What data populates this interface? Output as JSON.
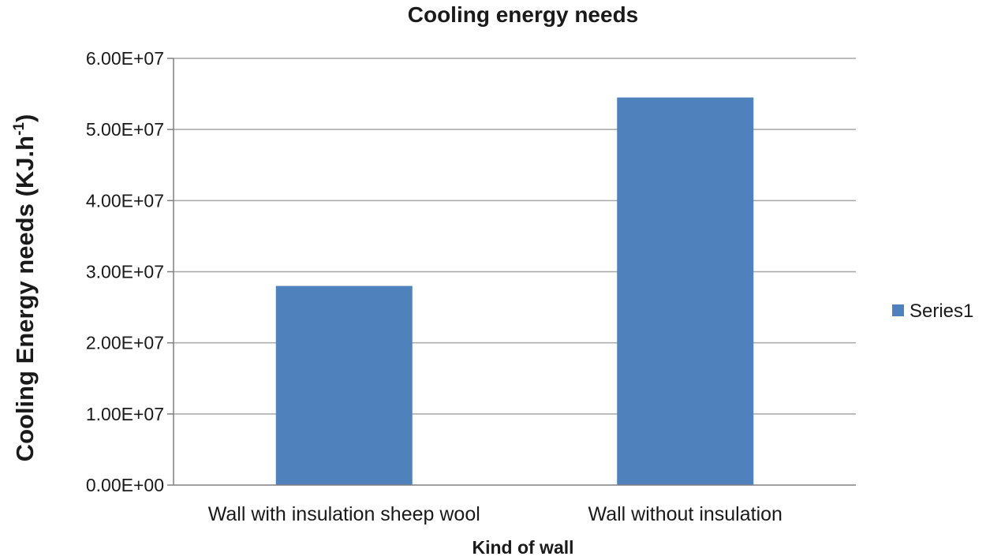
{
  "chart_data": {
    "type": "bar",
    "title": "Cooling energy needs",
    "xlabel": "Kind of wall",
    "ylabel": {
      "main": "Cooling Energy needs (KJ.h",
      "superscript": "-1",
      "close": ")"
    },
    "categories": [
      "Wall with insulation sheep wool",
      "Wall without insulation"
    ],
    "series": [
      {
        "name": "Series1",
        "values": [
          28000000,
          54500000
        ],
        "color": "#4f81bd"
      }
    ],
    "ylim": [
      0,
      60000000
    ],
    "yticks": [
      0,
      10000000,
      20000000,
      30000000,
      40000000,
      50000000,
      60000000
    ],
    "ytick_labels": [
      "0.00E+00",
      "1.00E+07",
      "2.00E+07",
      "3.00E+07",
      "4.00E+07",
      "5.00E+07",
      "6.00E+07"
    ],
    "grid": true,
    "legend": "right"
  }
}
